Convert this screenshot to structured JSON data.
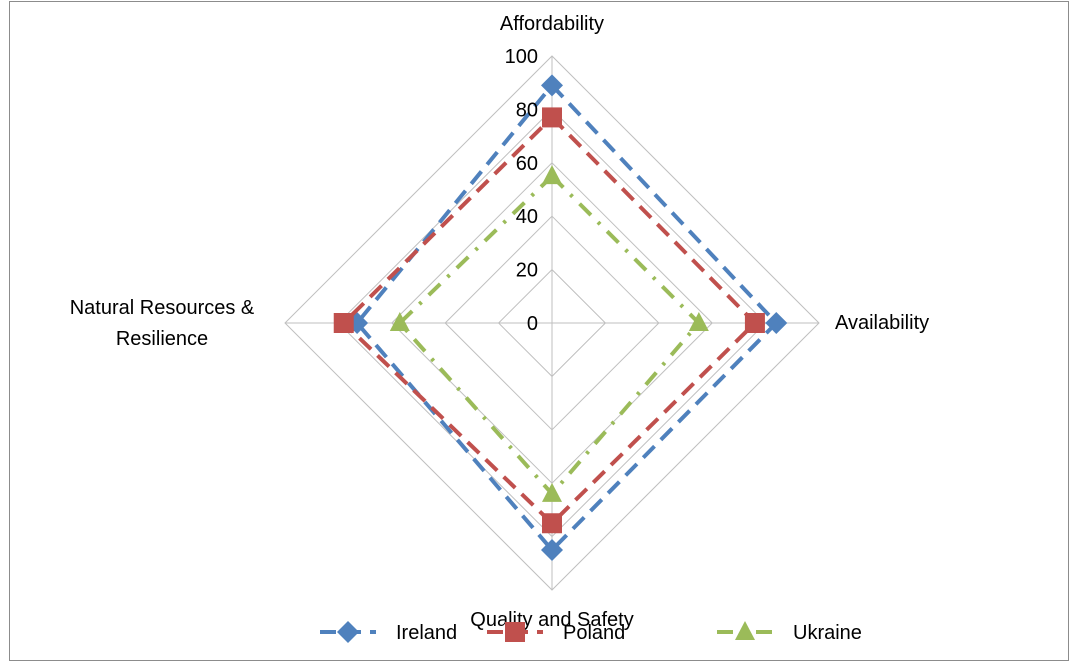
{
  "chart_data": {
    "type": "radar",
    "title": "",
    "axes": [
      "Affordability",
      "Availability",
      "Quality and Safety",
      "Natural Resources & Resilience"
    ],
    "axis_label_lines": [
      [
        "Affordability"
      ],
      [
        "Availability"
      ],
      [
        "Quality and Safety"
      ],
      [
        "Natural Resources &",
        "Resilience"
      ]
    ],
    "rlim": [
      0,
      100
    ],
    "ticks": [
      0,
      20,
      40,
      60,
      80,
      100
    ],
    "grid": true,
    "legend_position": "bottom",
    "series": [
      {
        "name": "Ireland",
        "values": [
          89,
          84,
          85,
          73
        ],
        "color": "#4f81bd",
        "marker": "diamond",
        "dash": "dashed"
      },
      {
        "name": "Poland",
        "values": [
          77,
          76,
          75,
          78
        ],
        "color": "#c0504d",
        "marker": "square",
        "dash": "dashed"
      },
      {
        "name": "Ukraine",
        "values": [
          55,
          55,
          64,
          57
        ],
        "color": "#9bbb59",
        "marker": "triangle",
        "dash": "dashdot"
      }
    ]
  }
}
